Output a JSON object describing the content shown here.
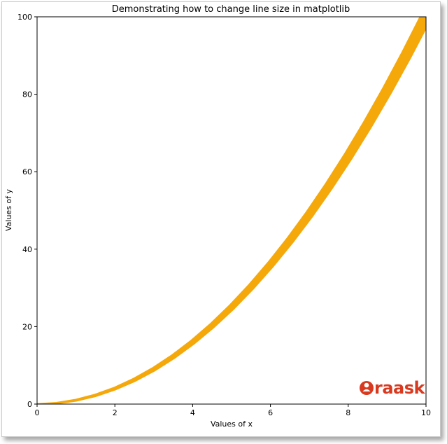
{
  "chart_data": {
    "type": "line",
    "title": "Demonstrating how to change line size in matplotlib",
    "xlabel": "Values of x",
    "ylabel": "Values of y",
    "xlim": [
      0,
      10
    ],
    "ylim": [
      0,
      100
    ],
    "xticks": [
      "0",
      "2",
      "4",
      "6",
      "8",
      "10"
    ],
    "yticks": [
      "0",
      "20",
      "40",
      "60",
      "80",
      "100"
    ],
    "grid": false,
    "series": [
      {
        "color": "#f5a80a",
        "x": [
          0,
          0.5,
          1,
          1.5,
          2,
          2.5,
          3,
          3.5,
          4,
          4.5,
          5,
          5.5,
          6,
          6.5,
          7,
          7.5,
          8,
          8.5,
          9,
          9.5,
          10
        ],
        "y": [
          0,
          0.25,
          1,
          2.25,
          4,
          6.25,
          9,
          12.25,
          16,
          20.25,
          25,
          30.25,
          36,
          42.25,
          49,
          56.25,
          64,
          72.25,
          81,
          90.25,
          100
        ]
      }
    ]
  },
  "watermark": {
    "text": "raask",
    "color": "#d8391f"
  }
}
